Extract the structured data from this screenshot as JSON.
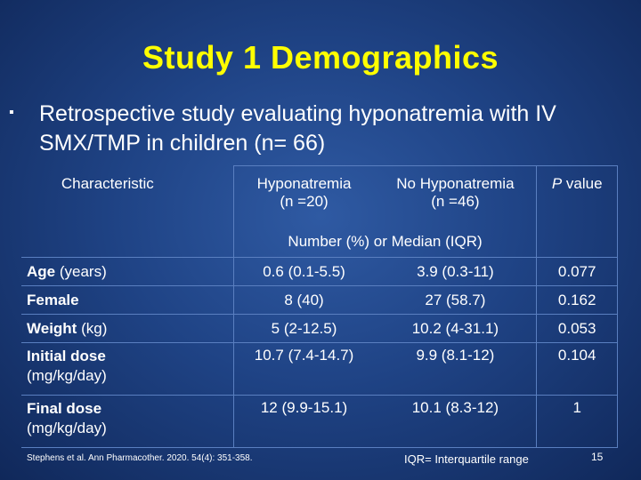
{
  "slide": {
    "title": "Study 1 Demographics",
    "bullet_mark": "▪",
    "bullet": "Retrospective study evaluating hyponatremia with IV SMX/TMP in children (n= 66)",
    "colors": {
      "title": "#ffff00",
      "text": "#ffffff",
      "background": "#1f4385"
    }
  },
  "table": {
    "headers": {
      "characteristic": "Characteristic",
      "hypo_line1": "Hyponatremia",
      "hypo_line2": "(n =20)",
      "nohypo_line1": "No Hyponatremia",
      "nohypo_line2": "(n =46)",
      "p_italic": "P",
      "p_rest": " value"
    },
    "subheader": "Number (%) or Median (IQR)",
    "rows": [
      {
        "label_bold": "Age",
        "label_rest": " (years)",
        "label_line2": "",
        "hypo": "0.6 (0.1-5.5)",
        "nohypo": "3.9 (0.3-11)",
        "p": "0.077"
      },
      {
        "label_bold": "Female",
        "label_rest": "",
        "label_line2": "",
        "hypo": "8 (40)",
        "nohypo": "27 (58.7)",
        "p": "0.162"
      },
      {
        "label_bold": "Weight",
        "label_rest": " (kg)",
        "label_line2": "",
        "hypo": "5 (2-12.5)",
        "nohypo": "10.2 (4-31.1)",
        "p": "0.053"
      },
      {
        "label_bold": "Initial dose",
        "label_rest": "",
        "label_line2": "(mg/kg/day)",
        "hypo": "10.7 (7.4-14.7)",
        "nohypo": "9.9 (8.1-12)",
        "p": "0.104"
      },
      {
        "label_bold": "Final dose",
        "label_rest": "",
        "label_line2": "(mg/kg/day)",
        "hypo": "12 (9.9-15.1)",
        "nohypo": "10.1 (8.3-12)",
        "p": "1"
      }
    ]
  },
  "footer": {
    "citation": "Stephens et al. Ann Pharmacother. 2020. 54(4): 351-358.",
    "iqr_note": "IQR= Interquartile range",
    "page_number": "15"
  }
}
